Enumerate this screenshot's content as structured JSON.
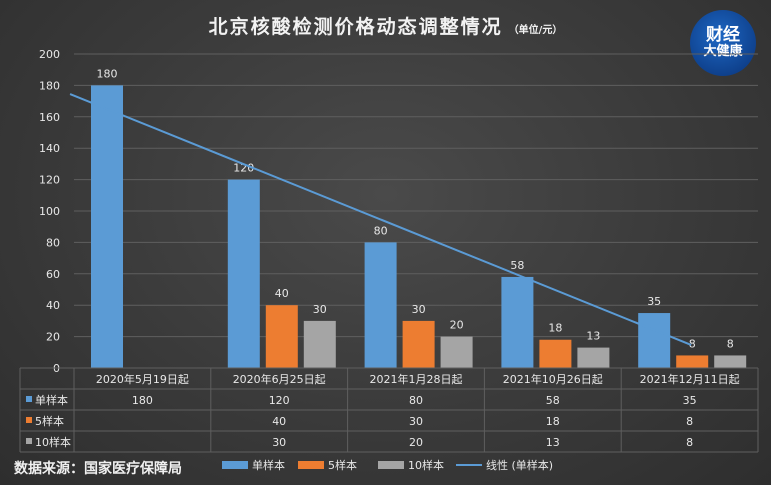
{
  "title": "北京核酸检测价格动态调整情况",
  "unit": "（单位/元）",
  "logo": {
    "line1": "财经",
    "line2": "大健康"
  },
  "source": "数据来源：国家医疗保障局",
  "colors": {
    "single": "#5b9bd5",
    "five": "#ed7d31",
    "ten": "#a5a5a5",
    "trend": "#5b9bd5",
    "grid": "#5f5f5f",
    "text": "#e8e8e8"
  },
  "chart_data": {
    "type": "bar",
    "categories": [
      "2020年5月19日起",
      "2020年6月25日起",
      "2021年1月28日起",
      "2021年10月26日起",
      "2021年12月11日起"
    ],
    "series": [
      {
        "name": "单样本",
        "values": [
          180,
          120,
          80,
          58,
          35
        ]
      },
      {
        "name": "5样本",
        "values": [
          null,
          40,
          30,
          18,
          8
        ]
      },
      {
        "name": "10样本",
        "values": [
          null,
          30,
          20,
          13,
          8
        ]
      }
    ],
    "trendline": {
      "name": "线性 (单样本)",
      "of_series": "单样本"
    },
    "data_labels": true,
    "y_ticks": [
      0,
      20,
      40,
      60,
      80,
      100,
      120,
      140,
      160,
      180,
      200
    ],
    "ylim": [
      0,
      200
    ],
    "grid": "horizontal",
    "data_table": true,
    "legend_position": "bottom"
  }
}
